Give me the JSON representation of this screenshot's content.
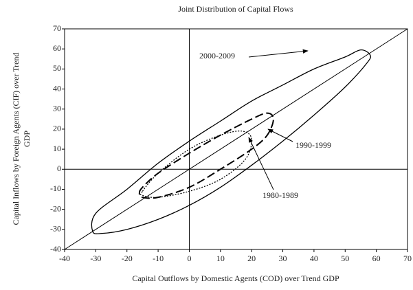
{
  "chart_data": {
    "type": "contour",
    "title": "Joint Distribution of Capital Flows",
    "xlabel": "Capital Outflows by Domestic Agents (COD) over Trend GDP",
    "ylabel": [
      "Capital Inflows by Foreign Agents (CIF) over Trend",
      "GDP"
    ],
    "xlim": [
      -40,
      70
    ],
    "ylim": [
      -40,
      70
    ],
    "xticks": [
      -40,
      -30,
      -20,
      -10,
      0,
      10,
      20,
      30,
      40,
      50,
      60,
      70
    ],
    "yticks": [
      -40,
      -30,
      -20,
      -10,
      0,
      10,
      20,
      30,
      40,
      50,
      60,
      70
    ],
    "series": [
      {
        "name": "2000-2009",
        "color": "#000000",
        "style": "solid",
        "x": [
          -31,
          -30,
          -20,
          -10,
          0,
          10,
          20,
          30,
          40,
          50,
          55,
          58,
          57,
          50,
          40,
          30,
          20,
          10,
          0,
          -10,
          -20,
          -28
        ],
        "values": [
          -31,
          -22,
          -10,
          3,
          14,
          24,
          34,
          42,
          50,
          56,
          59.5,
          57,
          53,
          41,
          27,
          14,
          2,
          -9,
          -18,
          -25,
          -30,
          -32
        ]
      },
      {
        "name": "1990-1999",
        "color": "#000000",
        "style": "dashed",
        "x": [
          -16,
          -15,
          -10,
          0,
          10,
          20,
          25,
          27,
          25,
          20,
          10,
          0,
          -10,
          -15
        ],
        "values": [
          -12,
          -9,
          -2,
          8,
          17,
          25,
          28,
          25,
          17,
          10,
          0,
          -9,
          -14,
          -14
        ]
      },
      {
        "name": "1980-1989",
        "color": "#000000",
        "style": "dotted",
        "x": [
          -15,
          -10,
          0,
          10,
          17,
          20,
          18,
          10,
          0,
          -10,
          -15
        ],
        "values": [
          -11,
          -2,
          10,
          17,
          19,
          15,
          5,
          -5,
          -11,
          -14,
          -13
        ]
      }
    ]
  }
}
